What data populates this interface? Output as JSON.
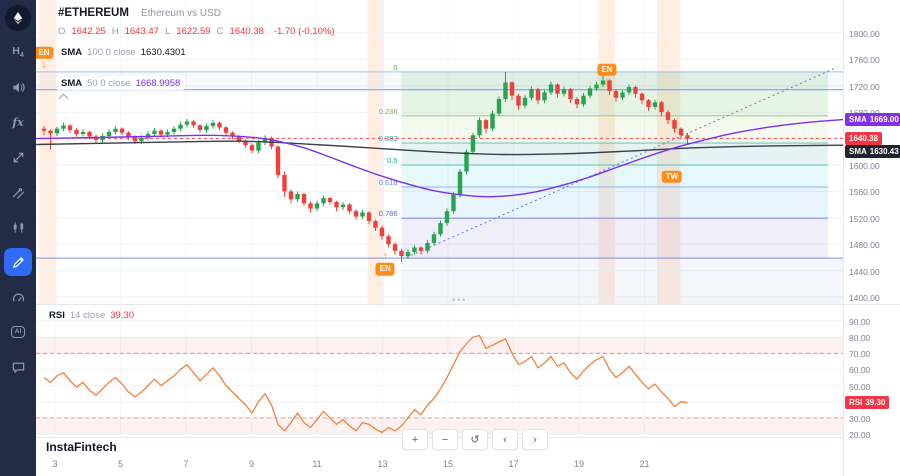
{
  "header": {
    "symbol": "#ETHEREUM",
    "title": "Ethereum vs USD",
    "ohlc": [
      {
        "label": "O",
        "value": "1642.25"
      },
      {
        "label": "H",
        "value": "1643.47"
      },
      {
        "label": "L",
        "value": "1622.59"
      },
      {
        "label": "C",
        "value": "1640.38"
      }
    ],
    "change": "-1.70 (-0.10%)"
  },
  "legends": {
    "sma100": {
      "name": "SMA",
      "params": "100 0 close",
      "value": "1630.4301"
    },
    "sma50": {
      "name": "SMA",
      "params": "50 0 close",
      "value": "1668.9958"
    },
    "rsi": {
      "name": "RSI",
      "params": "14 close",
      "value": "39.30"
    }
  },
  "sidebar": {
    "items": [
      {
        "name": "logo",
        "icon": "ethereum-logo"
      },
      {
        "name": "timeframe",
        "icon": "timeframe-h4",
        "label": "H4"
      },
      {
        "name": "volume",
        "icon": "volume-icon"
      },
      {
        "name": "indicators",
        "icon": "fx-icon",
        "label": "fx"
      },
      {
        "name": "cursor-tools",
        "icon": "arrows-icon"
      },
      {
        "name": "trendline-tool",
        "icon": "trendlines-icon"
      },
      {
        "name": "chart-type",
        "icon": "candles-icon"
      },
      {
        "name": "drawing-tool",
        "icon": "pen-icon",
        "active": true
      },
      {
        "name": "gauge",
        "icon": "gauge-icon"
      },
      {
        "name": "ai-assistant",
        "icon": "ai-icon",
        "label": "AI"
      },
      {
        "name": "chat",
        "icon": "chat-icon"
      }
    ]
  },
  "toolbar": {
    "zoom_in": "+",
    "zoom_out": "−",
    "reset": "↺",
    "prev": "‹",
    "next": "›"
  },
  "footer": {
    "brand": "InstaFintech"
  },
  "ui": {
    "panel_dots": "•••"
  },
  "axis": {
    "price_labels": [
      "1800.00",
      "1760.00",
      "1720.00",
      "1680.00",
      "1640.00",
      "1600.00",
      "1560.00",
      "1520.00",
      "1480.00",
      "1440.00",
      "1400.00"
    ],
    "rsi_labels": [
      "90.00",
      "80.00",
      "70.00",
      "60.00",
      "50.00",
      "40.00",
      "30.00",
      "20.00"
    ],
    "time_labels": [
      "3",
      "5",
      "7",
      "9",
      "11",
      "13",
      "15",
      "17",
      "19",
      "21"
    ],
    "badges": [
      {
        "id": "sma50-price",
        "label": "SMA",
        "value": "1669.00",
        "bg": "#8331e8",
        "panel": "price",
        "at": 1669.0
      },
      {
        "id": "last-price",
        "label": "",
        "value": "1640.38",
        "bg": "#f23645",
        "panel": "price",
        "at": 1640.38
      },
      {
        "id": "sma100-price",
        "label": "SMA",
        "value": "1630.43",
        "bg": "#20242f",
        "panel": "price",
        "at": 1630.43
      },
      {
        "id": "rsi-value",
        "label": "RSI",
        "value": "39.30",
        "bg": "#f23645",
        "panel": "rsi",
        "at": 39.3
      }
    ]
  },
  "chart_data": [
    {
      "type": "candlestick",
      "title": "Ethereum vs USD",
      "timeframe": "H4",
      "y_range": [
        1400,
        1800
      ],
      "x_tick_labels": [
        "3",
        "5",
        "7",
        "9",
        "11",
        "13",
        "15",
        "17",
        "19",
        "21"
      ],
      "up_color": "#2aa350",
      "down_color": "#ef403c",
      "session_band_color": "rgba(255,150,70,0.16)",
      "session_bands": [
        [
          -0.7,
          1.9
        ],
        [
          49.8,
          52.3
        ],
        [
          85.3,
          87.8
        ],
        [
          94.3,
          97.9
        ]
      ],
      "candles": [
        [
          1655,
          1659,
          1645,
          1652
        ],
        [
          1652,
          1654,
          1623,
          1648
        ],
        [
          1648,
          1658,
          1644,
          1655
        ],
        [
          1655,
          1664,
          1651,
          1660
        ],
        [
          1660,
          1662,
          1649,
          1653
        ],
        [
          1653,
          1656,
          1643,
          1647
        ],
        [
          1647,
          1654,
          1643,
          1650
        ],
        [
          1650,
          1652,
          1639,
          1643
        ],
        [
          1643,
          1646,
          1633,
          1638
        ],
        [
          1638,
          1648,
          1634,
          1644
        ],
        [
          1644,
          1654,
          1640,
          1650
        ],
        [
          1650,
          1659,
          1646,
          1655
        ],
        [
          1655,
          1657,
          1645,
          1649
        ],
        [
          1649,
          1651,
          1638,
          1642
        ],
        [
          1642,
          1645,
          1632,
          1636
        ],
        [
          1636,
          1645,
          1632,
          1641
        ],
        [
          1641,
          1651,
          1637,
          1647
        ],
        [
          1647,
          1656,
          1643,
          1652
        ],
        [
          1652,
          1654,
          1642,
          1646
        ],
        [
          1646,
          1654,
          1642,
          1650
        ],
        [
          1650,
          1659,
          1646,
          1655
        ],
        [
          1655,
          1665,
          1651,
          1661
        ],
        [
          1661,
          1670,
          1657,
          1666
        ],
        [
          1666,
          1668,
          1656,
          1660
        ],
        [
          1660,
          1662,
          1649,
          1653
        ],
        [
          1653,
          1663,
          1649,
          1659
        ],
        [
          1659,
          1668,
          1655,
          1664
        ],
        [
          1664,
          1666,
          1653,
          1657
        ],
        [
          1657,
          1659,
          1645,
          1649
        ],
        [
          1649,
          1651,
          1639,
          1643
        ],
        [
          1643,
          1645,
          1633,
          1637
        ],
        [
          1637,
          1639,
          1626,
          1630
        ],
        [
          1630,
          1633,
          1618,
          1622
        ],
        [
          1622,
          1638,
          1618,
          1634
        ],
        [
          1634,
          1645,
          1630,
          1641
        ],
        [
          1641,
          1643,
          1624,
          1628
        ],
        [
          1628,
          1630,
          1580,
          1585
        ],
        [
          1585,
          1590,
          1552,
          1560
        ],
        [
          1560,
          1563,
          1542,
          1548
        ],
        [
          1548,
          1560,
          1544,
          1556
        ],
        [
          1556,
          1558,
          1538,
          1542
        ],
        [
          1542,
          1545,
          1528,
          1534
        ],
        [
          1534,
          1546,
          1530,
          1542
        ],
        [
          1542,
          1554,
          1538,
          1550
        ],
        [
          1550,
          1552,
          1540,
          1544
        ],
        [
          1544,
          1546,
          1530,
          1536
        ],
        [
          1536,
          1544,
          1532,
          1540
        ],
        [
          1540,
          1542,
          1526,
          1530
        ],
        [
          1530,
          1533,
          1517,
          1522
        ],
        [
          1522,
          1532,
          1518,
          1528
        ],
        [
          1528,
          1530,
          1510,
          1515
        ],
        [
          1515,
          1517,
          1500,
          1505
        ],
        [
          1505,
          1508,
          1487,
          1492
        ],
        [
          1492,
          1495,
          1475,
          1480
        ],
        [
          1480,
          1483,
          1464,
          1470
        ],
        [
          1470,
          1473,
          1453,
          1462
        ],
        [
          1462,
          1472,
          1458,
          1468
        ],
        [
          1468,
          1479,
          1464,
          1475
        ],
        [
          1475,
          1477,
          1464,
          1470
        ],
        [
          1470,
          1486,
          1466,
          1482
        ],
        [
          1482,
          1499,
          1478,
          1495
        ],
        [
          1495,
          1516,
          1491,
          1512
        ],
        [
          1512,
          1534,
          1508,
          1530
        ],
        [
          1530,
          1559,
          1526,
          1555
        ],
        [
          1555,
          1594,
          1551,
          1590
        ],
        [
          1590,
          1624,
          1586,
          1620
        ],
        [
          1620,
          1649,
          1616,
          1645
        ],
        [
          1645,
          1672,
          1641,
          1668
        ],
        [
          1668,
          1670,
          1648,
          1655
        ],
        [
          1655,
          1682,
          1651,
          1678
        ],
        [
          1678,
          1704,
          1674,
          1700
        ],
        [
          1700,
          1741,
          1696,
          1725
        ],
        [
          1725,
          1727,
          1698,
          1705
        ],
        [
          1705,
          1708,
          1683,
          1690
        ],
        [
          1690,
          1706,
          1686,
          1702
        ],
        [
          1702,
          1719,
          1698,
          1715
        ],
        [
          1715,
          1717,
          1692,
          1698
        ],
        [
          1698,
          1714,
          1694,
          1710
        ],
        [
          1710,
          1726,
          1706,
          1722
        ],
        [
          1722,
          1724,
          1702,
          1708
        ],
        [
          1708,
          1719,
          1704,
          1715
        ],
        [
          1715,
          1717,
          1694,
          1700
        ],
        [
          1700,
          1703,
          1686,
          1692
        ],
        [
          1692,
          1709,
          1688,
          1705
        ],
        [
          1705,
          1720,
          1701,
          1716
        ],
        [
          1716,
          1726,
          1712,
          1722
        ],
        [
          1722,
          1736,
          1718,
          1728
        ],
        [
          1728,
          1730,
          1706,
          1712
        ],
        [
          1712,
          1715,
          1696,
          1702
        ],
        [
          1702,
          1714,
          1698,
          1710
        ],
        [
          1710,
          1722,
          1706,
          1718
        ],
        [
          1718,
          1720,
          1702,
          1708
        ],
        [
          1708,
          1710,
          1692,
          1698
        ],
        [
          1698,
          1700,
          1682,
          1688
        ],
        [
          1688,
          1699,
          1684,
          1695
        ],
        [
          1695,
          1697,
          1674,
          1680
        ],
        [
          1680,
          1683,
          1662,
          1668
        ],
        [
          1668,
          1670,
          1649,
          1655
        ],
        [
          1655,
          1657,
          1640,
          1645
        ],
        [
          1645,
          1648,
          1632,
          1640
        ]
      ],
      "overlays": {
        "sma100": {
          "name": "SMA 100",
          "color": "#3a3f4a",
          "value": 1630.4301,
          "points": [
            [
              -1.2,
              1631
            ],
            [
              15,
              1634
            ],
            [
              30,
              1636
            ],
            [
              40,
              1632
            ],
            [
              50,
              1626
            ],
            [
              60,
              1620
            ],
            [
              70,
              1616
            ],
            [
              80,
              1617
            ],
            [
              90,
              1621
            ],
            [
              100,
              1626
            ],
            [
              112,
              1629
            ],
            [
              123,
              1630
            ]
          ]
        },
        "sma50": {
          "name": "SMA 50",
          "color": "#7a30f0",
          "value": 1668.9958,
          "points": [
            [
              -1.2,
              1640
            ],
            [
              15,
              1643
            ],
            [
              25,
              1645
            ],
            [
              32,
              1642
            ],
            [
              36,
              1636
            ],
            [
              40,
              1626
            ],
            [
              44,
              1612
            ],
            [
              48,
              1597
            ],
            [
              52,
              1583
            ],
            [
              56,
              1571
            ],
            [
              60,
              1561
            ],
            [
              64,
              1555
            ],
            [
              68,
              1552
            ],
            [
              72,
              1554
            ],
            [
              76,
              1560
            ],
            [
              80,
              1570
            ],
            [
              84,
              1582
            ],
            [
              88,
              1596
            ],
            [
              92,
              1610
            ],
            [
              96,
              1623
            ],
            [
              100,
              1634
            ],
            [
              106,
              1648
            ],
            [
              112,
              1658
            ],
            [
              118,
              1665
            ],
            [
              123,
              1669
            ]
          ]
        }
      },
      "fib_retracement": {
        "x_start_index": 55,
        "x_end_index": 120.6,
        "price_high": 1741,
        "price_low": 1459,
        "levels": [
          {
            "ratio": 0,
            "label": "0",
            "color": "#4caf50"
          },
          {
            "ratio": 0.236,
            "label": "0.236",
            "color": "#7cb342"
          },
          {
            "ratio": 0.382,
            "label": "0.382",
            "color": "#26a69a"
          },
          {
            "ratio": 0.5,
            "label": "0.5",
            "color": "#26a69a"
          },
          {
            "ratio": 0.618,
            "label": "0.618",
            "color": "#5c8de8"
          },
          {
            "ratio": 0.786,
            "label": "0.786",
            "color": "#5c6bc0"
          },
          {
            "ratio": 1,
            "label": "",
            "color": "#7986cb"
          }
        ],
        "band_colors": [
          "rgba(76,175,80,0.14)",
          "rgba(139,195,74,0.10)",
          "rgba(0,150,136,0.10)",
          "rgba(0,188,212,0.10)",
          "rgba(33,150,243,0.10)",
          "rgba(103,88,199,0.10)"
        ]
      },
      "trend_line": {
        "from": [
          55.8,
          1460
        ],
        "to": [
          122,
          1748
        ],
        "style": "dotted",
        "color": "#5b7bd5"
      },
      "h_lines": [
        {
          "price": 1741,
          "color": "#9ec3f5"
        },
        {
          "price": 1714,
          "color": "#6d9ceb"
        },
        {
          "price": 1459,
          "color": "#8892d8"
        }
      ],
      "price_line": {
        "price": 1640.38,
        "color": "#f23645"
      },
      "markers": [
        {
          "label": "EN",
          "x_index": 0,
          "price": 1770,
          "arrow": "down",
          "panel": "price"
        },
        {
          "label": "EN",
          "x_index": 52.5,
          "price": 1442,
          "arrow": "up",
          "panel": "price"
        },
        {
          "label": "EN",
          "x_index": 86.6,
          "price": 1744,
          "arrow": "down",
          "panel": "price"
        },
        {
          "label": "TW",
          "x_index": 96.6,
          "price": 1582,
          "arrow": null,
          "panel": "price"
        }
      ]
    },
    {
      "type": "line",
      "indicator": "RSI",
      "period": 14,
      "value": 39.3,
      "y_range": [
        20,
        90
      ],
      "levels": [
        70,
        30
      ],
      "zones": [
        [
          80,
          70
        ],
        [
          30,
          20
        ]
      ],
      "zone_color": "rgba(242,54,69,0.07)",
      "color": "#f0823c",
      "values": [
        55,
        52,
        56,
        58,
        53,
        49,
        52,
        47,
        44,
        48,
        52,
        55,
        51,
        46,
        43,
        46,
        50,
        54,
        50,
        53,
        56,
        60,
        63,
        58,
        53,
        57,
        61,
        56,
        50,
        46,
        42,
        38,
        33,
        40,
        45,
        38,
        26,
        22,
        27,
        33,
        27,
        24,
        29,
        34,
        30,
        26,
        29,
        25,
        22,
        27,
        26,
        23,
        21,
        24,
        22,
        25,
        30,
        35,
        32,
        38,
        42,
        48,
        55,
        63,
        71,
        76,
        80,
        81,
        73,
        75,
        77,
        79,
        70,
        63,
        65,
        68,
        61,
        64,
        68,
        62,
        64,
        58,
        54,
        59,
        63,
        66,
        68,
        60,
        55,
        58,
        62,
        57,
        52,
        48,
        51,
        46,
        42,
        37,
        40,
        39.3
      ]
    }
  ]
}
